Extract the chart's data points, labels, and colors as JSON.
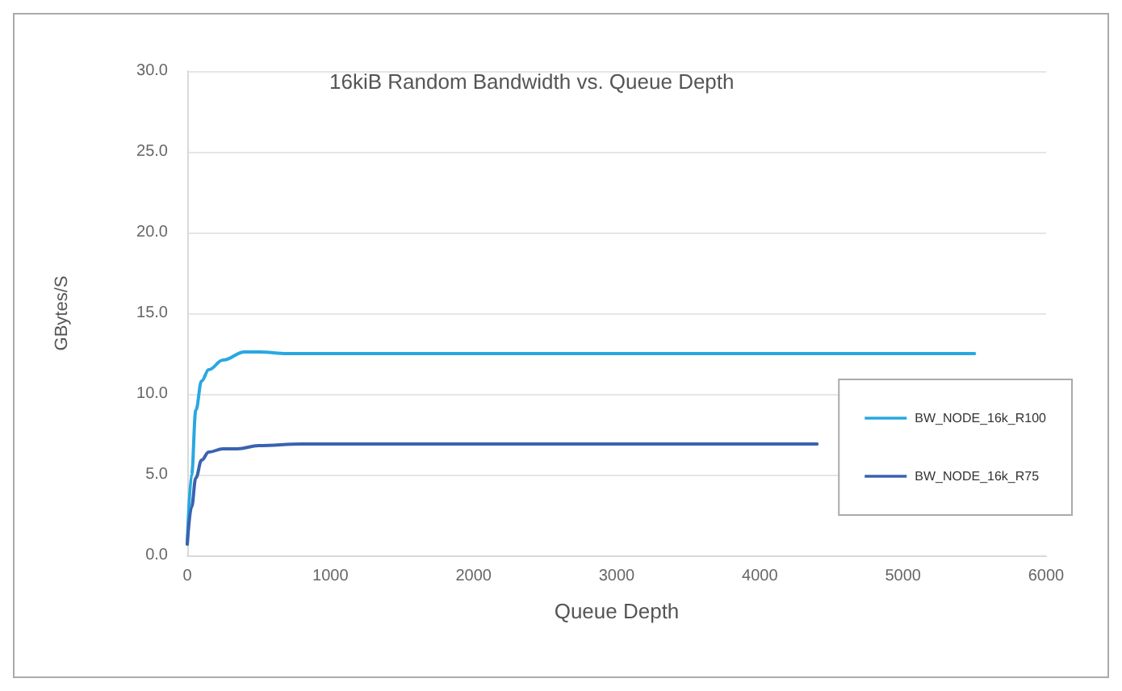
{
  "chart_data": {
    "type": "line",
    "title": "16kiB Random Bandwidth vs. Queue Depth",
    "xlabel": "Queue Depth",
    "ylabel": "GBytes/S",
    "series": [
      {
        "name": "BW_NODE_16k_R100",
        "color": "#29a8e0",
        "x": [
          0,
          30,
          60,
          100,
          150,
          250,
          400,
          500,
          700,
          1600,
          5500
        ],
        "values": [
          0.7,
          5,
          9,
          10.8,
          11.5,
          12.1,
          12.6,
          12.6,
          12.5,
          12.5,
          12.5
        ]
      },
      {
        "name": "BW_NODE_16k_R75",
        "color": "#3a62b0",
        "x": [
          0,
          30,
          60,
          100,
          150,
          250,
          350,
          500,
          800,
          2000,
          4400
        ],
        "values": [
          0.7,
          3,
          4.8,
          5.9,
          6.4,
          6.6,
          6.6,
          6.8,
          6.9,
          6.9,
          6.9
        ]
      }
    ],
    "xlim": [
      0,
      6000
    ],
    "xticks": [
      0,
      1000,
      2000,
      3000,
      4000,
      5000,
      6000
    ],
    "ylim": [
      0,
      30
    ],
    "yticks": [
      {
        "value": 0,
        "label": "0.0"
      },
      {
        "value": 5,
        "label": "5.0"
      },
      {
        "value": 10,
        "label": "10.0"
      },
      {
        "value": 15,
        "label": "15.0"
      },
      {
        "value": 20,
        "label": "20.0"
      },
      {
        "value": 25,
        "label": "25.0"
      },
      {
        "value": 30,
        "label": "30.0"
      }
    ],
    "grid": "y",
    "legend": "bottom right",
    "marker": "none",
    "line_style": "solid"
  }
}
